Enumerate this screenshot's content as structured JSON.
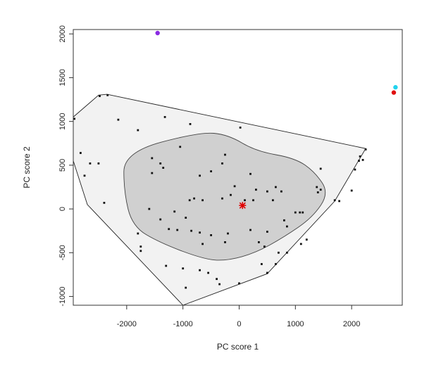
{
  "chart_data": {
    "type": "scatter",
    "title": "",
    "xlabel": "PC score 1",
    "ylabel": "PC score 2",
    "xlim": [
      -2950,
      2900
    ],
    "ylim": [
      -1100,
      2050
    ],
    "x_ticks": [
      -2000,
      -1000,
      0,
      1000,
      2000
    ],
    "y_ticks": [
      -1000,
      -500,
      0,
      500,
      1000,
      1500,
      2000
    ],
    "grid": false,
    "legend": "none",
    "colors": {
      "hull_outer_fill": "#f2f2f2",
      "hull_inner_fill": "#d0d0d0",
      "points": "#111111",
      "median": "#e00000",
      "outlier_purple": "#8a2be2",
      "outlier_cyan": "#22d3ee",
      "outlier_red": "#e01010"
    },
    "hull_outer": [
      {
        "x": -2950,
        "y": 1050
      },
      {
        "x": -2500,
        "y": 1300
      },
      {
        "x": -2350,
        "y": 1310
      },
      {
        "x": 2250,
        "y": 690
      },
      {
        "x": 1700,
        "y": 90
      },
      {
        "x": 500,
        "y": -740
      },
      {
        "x": -1000,
        "y": -1100
      },
      {
        "x": -2700,
        "y": 50
      },
      {
        "x": -2950,
        "y": 550
      }
    ],
    "hull_inner": [
      {
        "x": -2050,
        "y": 650
      },
      {
        "x": -700,
        "y": 880
      },
      {
        "x": -200,
        "y": 850
      },
      {
        "x": 300,
        "y": 660
      },
      {
        "x": 1000,
        "y": 580
      },
      {
        "x": 1350,
        "y": 420
      },
      {
        "x": 1600,
        "y": 180
      },
      {
        "x": 1300,
        "y": -100
      },
      {
        "x": 800,
        "y": -320
      },
      {
        "x": 300,
        "y": -500
      },
      {
        "x": -200,
        "y": -590
      },
      {
        "x": -600,
        "y": -580
      },
      {
        "x": -1400,
        "y": -390
      },
      {
        "x": -1900,
        "y": -200
      },
      {
        "x": -2050,
        "y": 200
      }
    ],
    "points": [
      {
        "x": -2930,
        "y": 1030
      },
      {
        "x": -2480,
        "y": 1290
      },
      {
        "x": -2340,
        "y": 1300
      },
      {
        "x": -2150,
        "y": 1020
      },
      {
        "x": -1800,
        "y": 900
      },
      {
        "x": -1320,
        "y": 1050
      },
      {
        "x": -870,
        "y": 970
      },
      {
        "x": 20,
        "y": 930
      },
      {
        "x": -2820,
        "y": 640
      },
      {
        "x": -2650,
        "y": 520
      },
      {
        "x": -2500,
        "y": 520
      },
      {
        "x": -2750,
        "y": 380
      },
      {
        "x": -2400,
        "y": 70
      },
      {
        "x": -1050,
        "y": 710
      },
      {
        "x": -1550,
        "y": 580
      },
      {
        "x": -1400,
        "y": 520
      },
      {
        "x": -1550,
        "y": 410
      },
      {
        "x": -1350,
        "y": 470
      },
      {
        "x": -250,
        "y": 620
      },
      {
        "x": -300,
        "y": 520
      },
      {
        "x": -500,
        "y": 430
      },
      {
        "x": -700,
        "y": 380
      },
      {
        "x": 200,
        "y": 400
      },
      {
        "x": 1450,
        "y": 460
      },
      {
        "x": -880,
        "y": 100
      },
      {
        "x": -800,
        "y": 120
      },
      {
        "x": -650,
        "y": 100
      },
      {
        "x": -300,
        "y": 120
      },
      {
        "x": -150,
        "y": 160
      },
      {
        "x": -80,
        "y": 260
      },
      {
        "x": 100,
        "y": 100
      },
      {
        "x": 250,
        "y": 100
      },
      {
        "x": 300,
        "y": 220
      },
      {
        "x": 500,
        "y": 200
      },
      {
        "x": 600,
        "y": 100
      },
      {
        "x": 750,
        "y": 200
      },
      {
        "x": 650,
        "y": 250
      },
      {
        "x": 1000,
        "y": -40
      },
      {
        "x": 1080,
        "y": -40
      },
      {
        "x": 1130,
        "y": -40
      },
      {
        "x": 1400,
        "y": 190
      },
      {
        "x": 1450,
        "y": 220
      },
      {
        "x": 1380,
        "y": 250
      },
      {
        "x": 1700,
        "y": 100
      },
      {
        "x": 1780,
        "y": 90
      },
      {
        "x": 2000,
        "y": 210
      },
      {
        "x": 2060,
        "y": 450
      },
      {
        "x": 2130,
        "y": 550
      },
      {
        "x": 2250,
        "y": 680
      },
      {
        "x": 2150,
        "y": 600
      },
      {
        "x": 2200,
        "y": 560
      },
      {
        "x": -1600,
        "y": 0
      },
      {
        "x": -1150,
        "y": -30
      },
      {
        "x": -1400,
        "y": -120
      },
      {
        "x": -950,
        "y": -100
      },
      {
        "x": -1250,
        "y": -230
      },
      {
        "x": -1100,
        "y": -240
      },
      {
        "x": -850,
        "y": -250
      },
      {
        "x": -700,
        "y": -270
      },
      {
        "x": -500,
        "y": -300
      },
      {
        "x": -200,
        "y": -280
      },
      {
        "x": 200,
        "y": -240
      },
      {
        "x": 500,
        "y": -260
      },
      {
        "x": 800,
        "y": -130
      },
      {
        "x": 850,
        "y": -200
      },
      {
        "x": -1800,
        "y": -280
      },
      {
        "x": -1750,
        "y": -430
      },
      {
        "x": -1750,
        "y": -480
      },
      {
        "x": -650,
        "y": -400
      },
      {
        "x": -250,
        "y": -380
      },
      {
        "x": 350,
        "y": -380
      },
      {
        "x": 450,
        "y": -430
      },
      {
        "x": 700,
        "y": -500
      },
      {
        "x": 1100,
        "y": -400
      },
      {
        "x": 850,
        "y": -500
      },
      {
        "x": 1200,
        "y": -350
      },
      {
        "x": -1300,
        "y": -650
      },
      {
        "x": -1000,
        "y": -680
      },
      {
        "x": -700,
        "y": -700
      },
      {
        "x": -550,
        "y": -730
      },
      {
        "x": -400,
        "y": -800
      },
      {
        "x": 0,
        "y": -850
      },
      {
        "x": 500,
        "y": -730
      },
      {
        "x": 400,
        "y": -630
      },
      {
        "x": 650,
        "y": -630
      },
      {
        "x": -950,
        "y": -900
      },
      {
        "x": -350,
        "y": -860
      }
    ],
    "median_point": {
      "x": 60,
      "y": 40
    },
    "outliers": [
      {
        "x": -1450,
        "y": 2010,
        "color": "#8a2be2"
      },
      {
        "x": 2780,
        "y": 1390,
        "color": "#22d3ee"
      },
      {
        "x": 2750,
        "y": 1330,
        "color": "#e01010"
      }
    ]
  }
}
